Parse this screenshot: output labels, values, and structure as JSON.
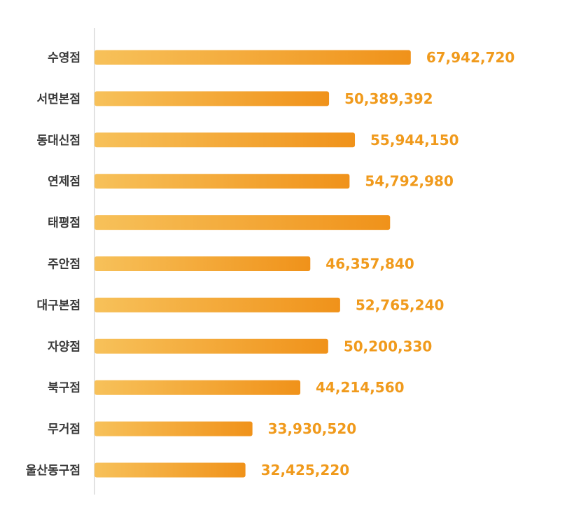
{
  "chart_data": {
    "type": "bar",
    "orientation": "horizontal",
    "title": "",
    "xlabel": "",
    "ylabel": "",
    "categories": [
      "수영점",
      "서면본점",
      "동대신점",
      "연제점",
      "태평점",
      "주안점",
      "대구본점",
      "자양점",
      "북구점",
      "무거점",
      "울산동구점"
    ],
    "values": [
      67942720,
      50389392,
      55944150,
      54792980,
      63500000,
      46357840,
      52765240,
      50200330,
      44214560,
      33930520,
      32425220
    ],
    "value_labels": [
      "67,942,720",
      "50,389,392",
      "55,944,150",
      "54,792,980",
      "",
      "46,357,840",
      "52,765,240",
      "50,200,330",
      "44,214,560",
      "33,930,520",
      "32,425,220"
    ],
    "xlim": [
      0,
      100000000
    ],
    "grid": false,
    "legend": "none",
    "colors": {
      "bar_start": "#f7c15a",
      "bar_end": "#f0921a",
      "value_text": "#f09a1c",
      "category_text": "#3a3a3a",
      "axis_line": "#d9d9d9"
    }
  }
}
